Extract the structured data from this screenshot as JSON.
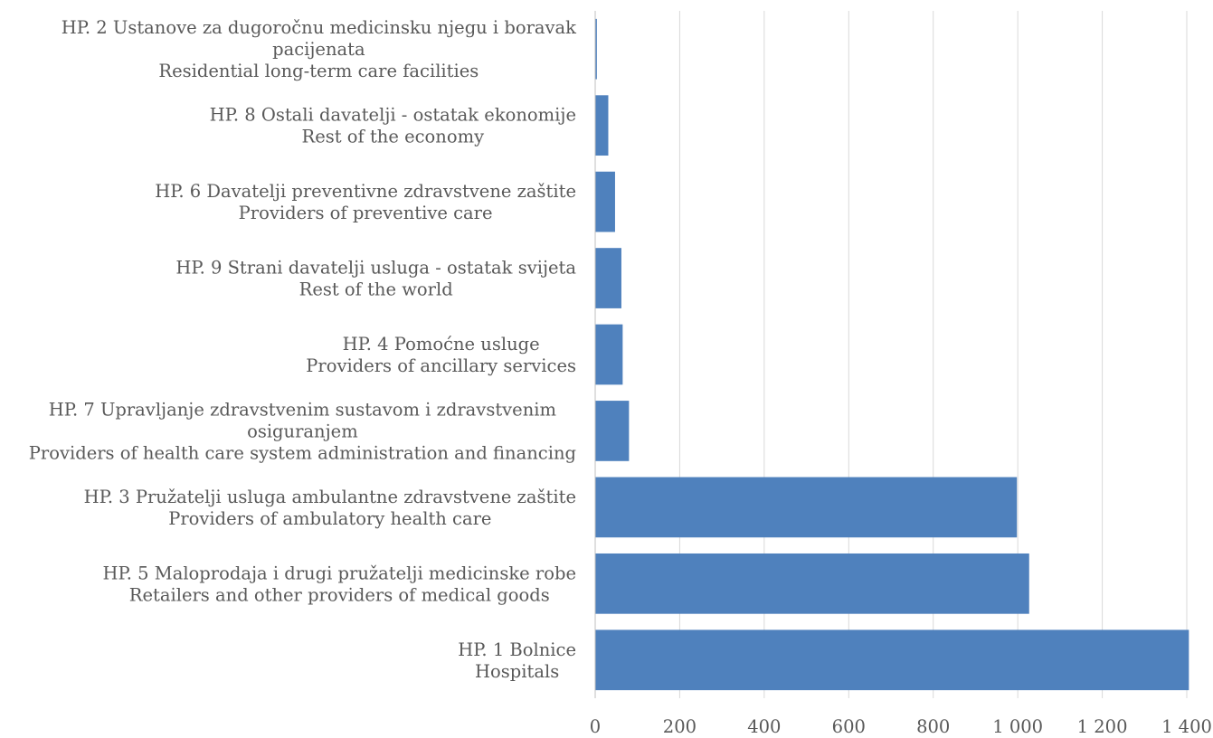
{
  "chart_data": {
    "type": "bar",
    "orientation": "horizontal",
    "categories": [
      [
        "HP. 1  Bolnice",
        "Hospitals"
      ],
      [
        "HP. 5 Maloprodaja i drugi pružatelji medicinske robe",
        "Retailers and other providers of medical goods"
      ],
      [
        "HP. 3  Pružatelji usluga ambulantne zdravstvene zaštite",
        "Providers of ambulatory health care"
      ],
      [
        "HP. 7 Upravljanje zdravstvenim sustavom i zdravstvenim",
        "osiguranjem",
        "Providers of health care system administration and financing"
      ],
      [
        "HP. 4  Pomoćne usluge",
        "Providers of ancillary services"
      ],
      [
        "HP. 9 Strani davatelji usluga - ostatak svijeta",
        "Rest of the world"
      ],
      [
        "HP. 6 Davatelji preventivne zdravstvene zaštite",
        "Providers of preventive care"
      ],
      [
        "HP. 8 Ostali davatelji - ostatak ekonomije",
        "Rest of the economy"
      ],
      [
        "HP. 2  Ustanove za dugoročnu medicinsku njegu i boravak",
        "pacijenata",
        "Residential long-term care facilities"
      ]
    ],
    "values": [
      1405,
      1027,
      998,
      80,
      65,
      62,
      47,
      31,
      4
    ],
    "xlim": [
      0,
      1400
    ],
    "ticks": [
      0,
      200,
      400,
      600,
      800,
      1000,
      1200,
      1400
    ],
    "tick_labels": [
      "0",
      "200",
      "400",
      "600",
      "800",
      "1 000",
      "1 200",
      "1 400"
    ],
    "bar_color": "#4f81bd",
    "grid": true,
    "title": "",
    "xlabel": "",
    "ylabel": ""
  }
}
